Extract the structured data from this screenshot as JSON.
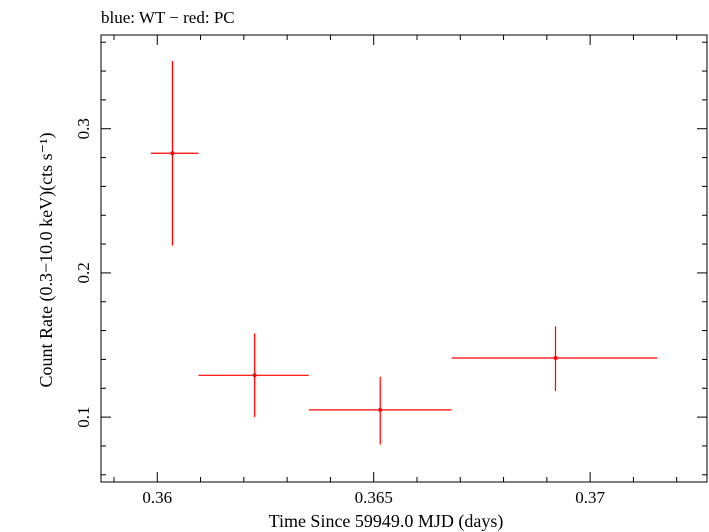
{
  "chart_data": {
    "type": "scatter",
    "title": "blue: WT − red: PC",
    "xlabel": "Time Since 59949.0 MJD (days)",
    "ylabel": "Count Rate (0.3−10.0 keV)(cts s⁻¹)",
    "xlim": [
      0.3587,
      0.3727
    ],
    "ylim": [
      0.055,
      0.365
    ],
    "x_ticks": [
      {
        "value": 0.36,
        "label": "0.36"
      },
      {
        "value": 0.365,
        "label": "0.365"
      },
      {
        "value": 0.37,
        "label": "0.37"
      }
    ],
    "y_ticks": [
      {
        "value": 0.1,
        "label": "0.1"
      },
      {
        "value": 0.2,
        "label": "0.2"
      },
      {
        "value": 0.3,
        "label": "0.3"
      }
    ],
    "x_minor_step": 0.001,
    "y_minor_step": 0.02,
    "grid": false,
    "series": [
      {
        "name": "PC",
        "color": "#ff0000",
        "points": [
          {
            "x": 0.36035,
            "y": 0.283,
            "x_lo": 0.35985,
            "x_hi": 0.36095,
            "y_lo": 0.219,
            "y_hi": 0.347
          },
          {
            "x": 0.36225,
            "y": 0.129,
            "x_lo": 0.36095,
            "x_hi": 0.3635,
            "y_lo": 0.1,
            "y_hi": 0.158
          },
          {
            "x": 0.36515,
            "y": 0.105,
            "x_lo": 0.3635,
            "x_hi": 0.3668,
            "y_lo": 0.081,
            "y_hi": 0.128
          },
          {
            "x": 0.3692,
            "y": 0.141,
            "x_lo": 0.3668,
            "x_hi": 0.37155,
            "y_lo": 0.118,
            "y_hi": 0.163
          }
        ]
      }
    ]
  }
}
